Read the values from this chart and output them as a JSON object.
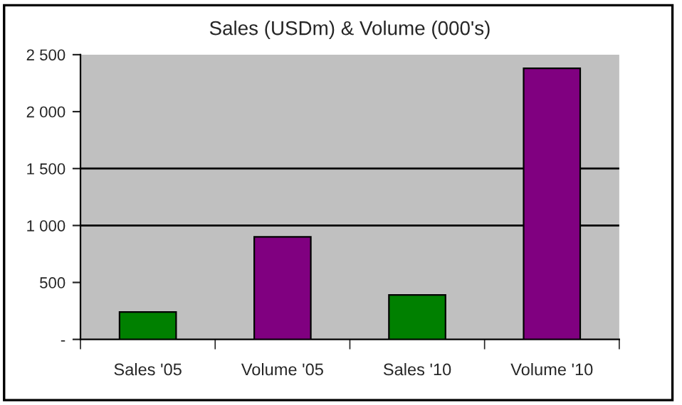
{
  "chart_data": {
    "type": "bar",
    "title": "Sales (USDm) & Volume (000's)",
    "categories": [
      "Sales '05",
      "Volume '05",
      "Sales '10",
      "Volume '10"
    ],
    "values": [
      240,
      900,
      390,
      2380
    ],
    "colors": [
      "#008000",
      "#800080",
      "#008000",
      "#800080"
    ],
    "ylim": [
      0,
      2500
    ],
    "yticks": [
      {
        "value": 0,
        "label": "-"
      },
      {
        "value": 500,
        "label": "500"
      },
      {
        "value": 1000,
        "label": "1 000"
      },
      {
        "value": 1500,
        "label": "1 500"
      },
      {
        "value": 2000,
        "label": "2 000"
      },
      {
        "value": 2500,
        "label": "2 500"
      }
    ],
    "ref_lines": [
      {
        "axis": "y",
        "value": 1000,
        "color": "#000000"
      },
      {
        "axis": "y",
        "value": 1500,
        "color": "#000000"
      }
    ],
    "grid": false,
    "legend": false
  }
}
